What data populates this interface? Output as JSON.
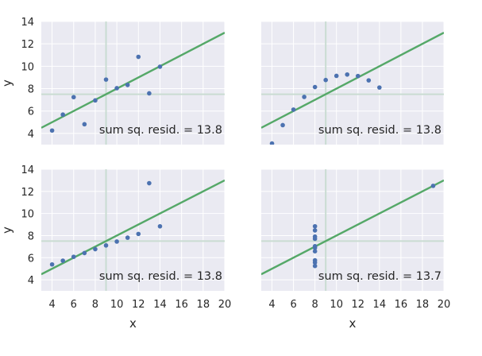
{
  "chart_data": [
    {
      "type": "scatter",
      "title": "",
      "xlabel": "",
      "ylabel": "y",
      "xlim": [
        3,
        20
      ],
      "ylim": [
        3,
        14
      ],
      "xticks": [],
      "yticks": [
        4,
        6,
        8,
        10,
        12,
        14
      ],
      "grid": true,
      "x": [
        10,
        8,
        13,
        9,
        11,
        14,
        6,
        4,
        12,
        7,
        5
      ],
      "y": [
        8.04,
        6.95,
        7.58,
        8.81,
        8.33,
        9.96,
        7.24,
        4.26,
        10.84,
        4.82,
        5.68
      ],
      "fit_line": {
        "intercept": 3.0,
        "slope": 0.5
      },
      "mean_x": 9.0,
      "mean_y": 7.5,
      "annotation": "sum sq. resid. = 13.8",
      "colors": {
        "points": "#4c72b0",
        "fit": "#55a868",
        "mean": "#c9dcd2"
      }
    },
    {
      "type": "scatter",
      "title": "",
      "xlabel": "",
      "ylabel": "",
      "xlim": [
        3,
        20
      ],
      "ylim": [
        3,
        14
      ],
      "xticks": [],
      "yticks": [],
      "grid": true,
      "x": [
        10,
        8,
        13,
        9,
        11,
        14,
        6,
        4,
        12,
        7,
        5
      ],
      "y": [
        9.14,
        8.14,
        8.74,
        8.77,
        9.26,
        8.1,
        6.13,
        3.1,
        9.13,
        7.26,
        4.74
      ],
      "fit_line": {
        "intercept": 3.0,
        "slope": 0.5
      },
      "mean_x": 9.0,
      "mean_y": 7.5,
      "annotation": "sum sq. resid. = 13.8",
      "colors": {
        "points": "#4c72b0",
        "fit": "#55a868",
        "mean": "#c9dcd2"
      }
    },
    {
      "type": "scatter",
      "title": "",
      "xlabel": "x",
      "ylabel": "y",
      "xlim": [
        3,
        20
      ],
      "ylim": [
        3,
        14
      ],
      "xticks": [
        4,
        6,
        8,
        10,
        12,
        14,
        16,
        18,
        20
      ],
      "yticks": [
        4,
        6,
        8,
        10,
        12,
        14
      ],
      "grid": true,
      "x": [
        10,
        8,
        13,
        9,
        11,
        14,
        6,
        4,
        12,
        7,
        5
      ],
      "y": [
        7.46,
        6.77,
        12.74,
        7.11,
        7.81,
        8.84,
        6.08,
        5.39,
        8.15,
        6.42,
        5.73
      ],
      "fit_line": {
        "intercept": 3.0,
        "slope": 0.5
      },
      "mean_x": 9.0,
      "mean_y": 7.5,
      "annotation": "sum sq. resid. = 13.8",
      "colors": {
        "points": "#4c72b0",
        "fit": "#55a868",
        "mean": "#c9dcd2"
      }
    },
    {
      "type": "scatter",
      "title": "",
      "xlabel": "x",
      "ylabel": "",
      "xlim": [
        3,
        20
      ],
      "ylim": [
        3,
        14
      ],
      "xticks": [
        4,
        6,
        8,
        10,
        12,
        14,
        16,
        18,
        20
      ],
      "yticks": [],
      "grid": true,
      "x": [
        8,
        8,
        8,
        8,
        8,
        8,
        8,
        19,
        8,
        8,
        8
      ],
      "y": [
        6.58,
        5.76,
        7.71,
        8.84,
        8.47,
        7.04,
        5.25,
        12.5,
        5.56,
        7.91,
        6.89
      ],
      "fit_line": {
        "intercept": 3.0,
        "slope": 0.5
      },
      "mean_x": 9.0,
      "mean_y": 7.5,
      "annotation": "sum sq. resid. = 13.7",
      "colors": {
        "points": "#4c72b0",
        "fit": "#55a868",
        "mean": "#c9dcd2"
      }
    }
  ]
}
